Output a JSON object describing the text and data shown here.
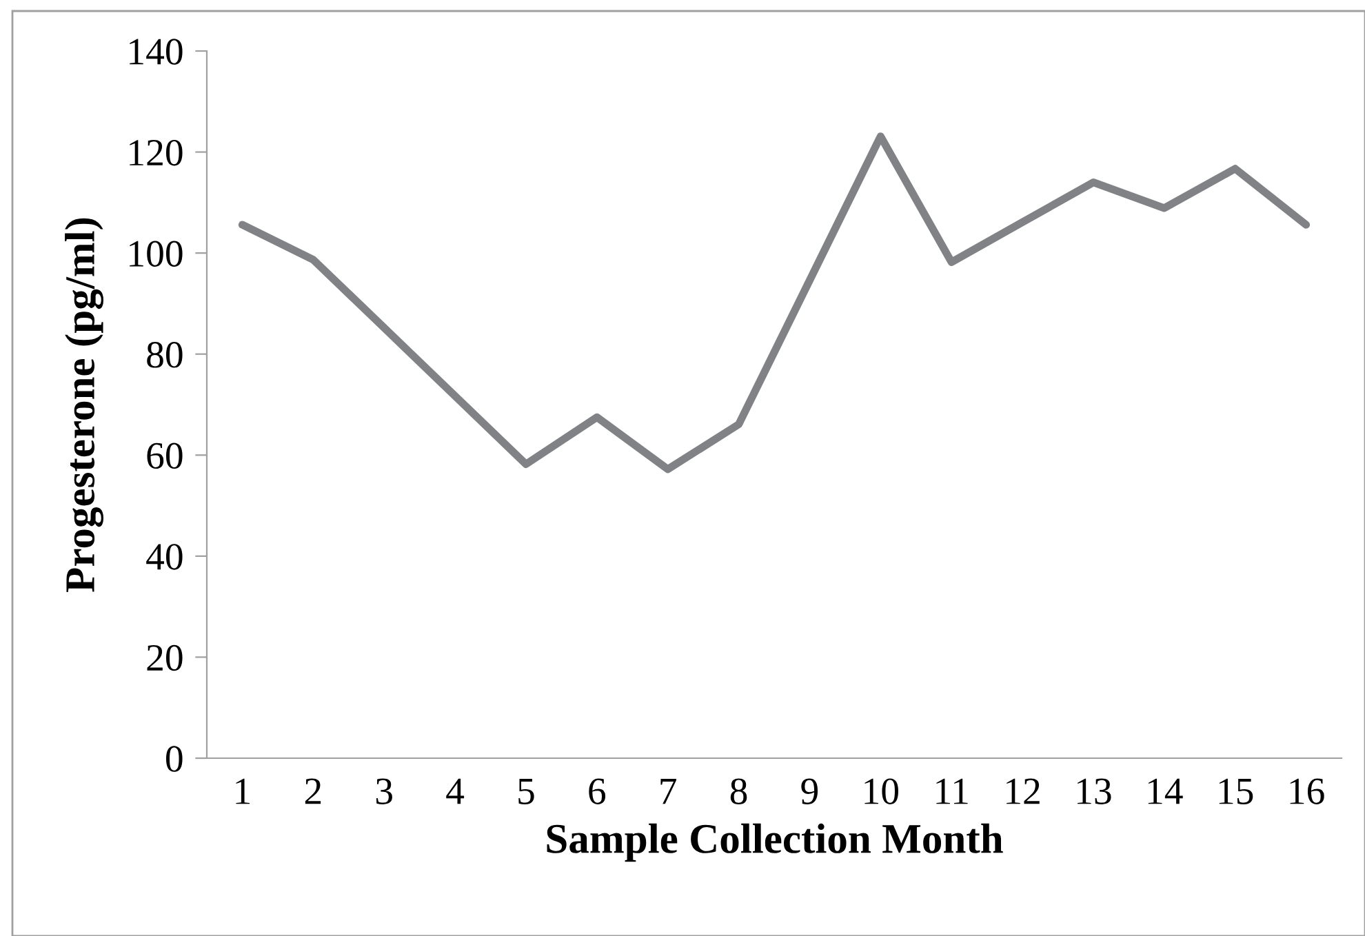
{
  "chart_data": {
    "type": "line",
    "xlabel": "Sample Collection Month",
    "ylabel": "Progesterone (pg/ml)",
    "categories": [
      "1",
      "2",
      "3",
      "4",
      "5",
      "6",
      "7",
      "8",
      "9",
      "10",
      "11",
      "12",
      "13",
      "14",
      "15",
      "16"
    ],
    "series": [
      {
        "color": "#808285",
        "values": [
          105.6,
          98.7,
          85.2,
          71.7,
          58.2,
          67.5,
          57.2,
          66.1,
          94.6,
          123.1,
          98.2,
          106.1,
          114.0,
          108.9,
          116.7,
          105.6
        ]
      }
    ],
    "ylim": [
      0,
      140
    ],
    "yticks": [
      0,
      20,
      40,
      60,
      80,
      100,
      120,
      140
    ],
    "grid": false,
    "marker": "none",
    "line_style": "solid"
  }
}
